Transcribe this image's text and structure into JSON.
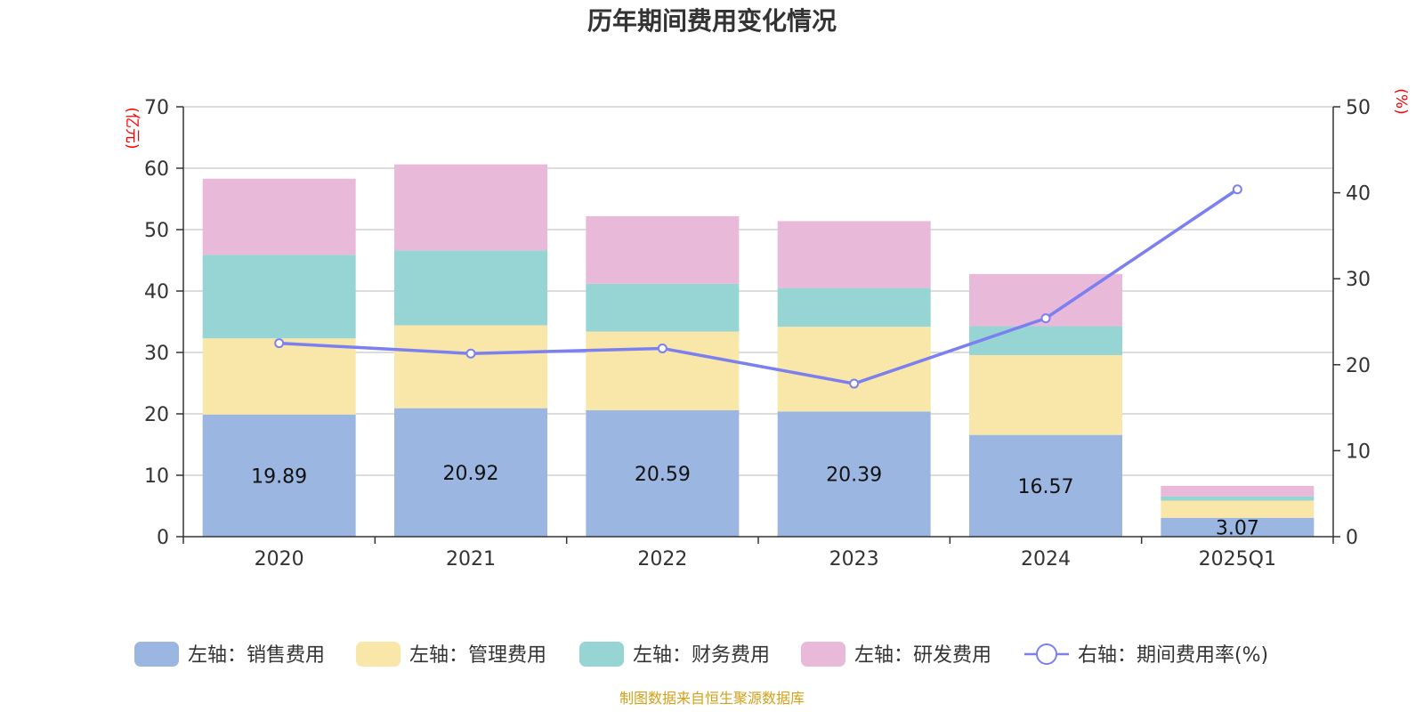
{
  "chart_data": {
    "type": "bar",
    "stacked": true,
    "title": "历年期间费用变化情况",
    "left_axis_unit": "(亿元)",
    "right_axis_unit": "(%)",
    "categories": [
      "2020",
      "2021",
      "2022",
      "2023",
      "2024",
      "2025Q1"
    ],
    "ylim_left": [
      0,
      70
    ],
    "yticks_left": [
      0,
      10,
      20,
      30,
      40,
      50,
      60,
      70
    ],
    "ylim_right": [
      0,
      50
    ],
    "yticks_right": [
      0,
      10,
      20,
      30,
      40,
      50
    ],
    "series": [
      {
        "name": "左轴：销售费用",
        "axis": "left",
        "type": "bar",
        "color": "#9bb7e1",
        "values": [
          19.89,
          20.92,
          20.59,
          20.39,
          16.57,
          3.07
        ],
        "labels": [
          "19.89",
          "20.92",
          "20.59",
          "20.39",
          "16.57",
          "3.07"
        ]
      },
      {
        "name": "左轴：管理费用",
        "axis": "left",
        "type": "bar",
        "color": "#f8e7a8",
        "values": [
          12.4,
          13.5,
          12.8,
          13.8,
          13.0,
          2.8
        ]
      },
      {
        "name": "左轴：财务费用",
        "axis": "left",
        "type": "bar",
        "color": "#97d4d4",
        "values": [
          13.6,
          12.2,
          7.8,
          6.3,
          4.7,
          0.7
        ]
      },
      {
        "name": "左轴：研发费用",
        "axis": "left",
        "type": "bar",
        "color": "#e8b9d9",
        "values": [
          12.4,
          14.0,
          11.0,
          10.9,
          8.5,
          1.7
        ]
      },
      {
        "name": "右轴：期间费用率(%)",
        "axis": "right",
        "type": "line",
        "color": "#7b7ff0",
        "values": [
          22.5,
          21.3,
          21.9,
          17.8,
          25.4,
          40.4
        ]
      }
    ],
    "grid": true,
    "legend_position": "bottom"
  },
  "footer": {
    "source": "制图数据来自恒生聚源数据库"
  }
}
